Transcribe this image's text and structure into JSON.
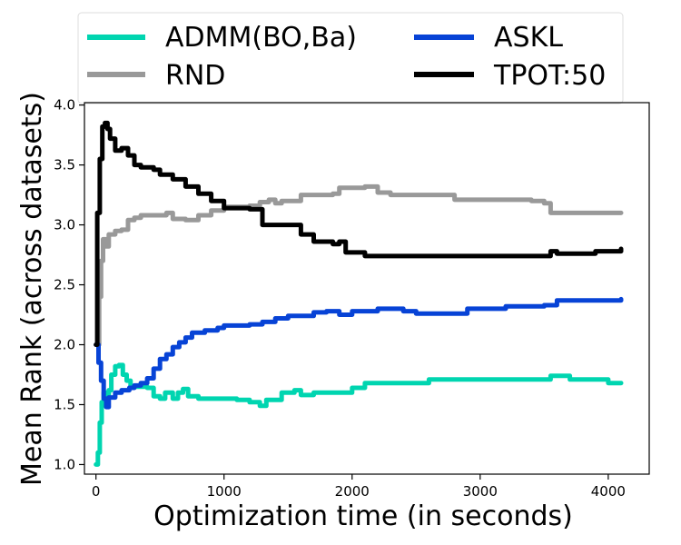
{
  "chart_data": {
    "type": "line",
    "title": "",
    "xlabel": "Optimization time (in seconds)",
    "ylabel": "Mean Rank (across datasets)",
    "xlim": [
      -90,
      4320
    ],
    "ylim": [
      0.92,
      4.02
    ],
    "xticks": [
      0,
      1000,
      2000,
      3000,
      4000
    ],
    "xtick_labels": [
      "0",
      "1000",
      "2000",
      "3000",
      "4000"
    ],
    "yticks": [
      1.0,
      1.5,
      2.0,
      2.5,
      3.0,
      3.5,
      4.0
    ],
    "ytick_labels": [
      "1.0",
      "1.5",
      "2.0",
      "2.5",
      "3.0",
      "3.5",
      "4.0"
    ],
    "grid": false,
    "legend_position": "top",
    "series": [
      {
        "name": "ADMM(BO,Ba)",
        "color": "#00d5b0",
        "points": [
          [
            0,
            1.0
          ],
          [
            15,
            1.1
          ],
          [
            30,
            1.35
          ],
          [
            45,
            1.52
          ],
          [
            60,
            1.6
          ],
          [
            80,
            1.55
          ],
          [
            100,
            1.62
          ],
          [
            120,
            1.75
          ],
          [
            150,
            1.82
          ],
          [
            180,
            1.83
          ],
          [
            210,
            1.75
          ],
          [
            240,
            1.7
          ],
          [
            270,
            1.65
          ],
          [
            400,
            1.64
          ],
          [
            450,
            1.57
          ],
          [
            500,
            1.55
          ],
          [
            540,
            1.6
          ],
          [
            600,
            1.55
          ],
          [
            640,
            1.6
          ],
          [
            680,
            1.63
          ],
          [
            720,
            1.57
          ],
          [
            800,
            1.55
          ],
          [
            1100,
            1.54
          ],
          [
            1200,
            1.52
          ],
          [
            1280,
            1.49
          ],
          [
            1330,
            1.54
          ],
          [
            1400,
            1.54
          ],
          [
            1450,
            1.6
          ],
          [
            1550,
            1.62
          ],
          [
            1600,
            1.58
          ],
          [
            1700,
            1.6
          ],
          [
            1800,
            1.6
          ],
          [
            2000,
            1.64
          ],
          [
            2100,
            1.68
          ],
          [
            2500,
            1.68
          ],
          [
            2600,
            1.71
          ],
          [
            3500,
            1.71
          ],
          [
            3550,
            1.74
          ],
          [
            3650,
            1.74
          ],
          [
            3700,
            1.71
          ],
          [
            3900,
            1.71
          ],
          [
            4000,
            1.68
          ],
          [
            4100,
            1.68
          ]
        ]
      },
      {
        "name": "RND",
        "color": "#999999",
        "points": [
          [
            0,
            2.0
          ],
          [
            25,
            2.4
          ],
          [
            40,
            2.7
          ],
          [
            55,
            2.88
          ],
          [
            75,
            2.82
          ],
          [
            100,
            2.92
          ],
          [
            150,
            2.95
          ],
          [
            200,
            2.96
          ],
          [
            250,
            3.04
          ],
          [
            300,
            3.06
          ],
          [
            350,
            3.08
          ],
          [
            500,
            3.08
          ],
          [
            550,
            3.1
          ],
          [
            600,
            3.05
          ],
          [
            700,
            3.04
          ],
          [
            800,
            3.08
          ],
          [
            900,
            3.12
          ],
          [
            1000,
            3.15
          ],
          [
            1200,
            3.16
          ],
          [
            1280,
            3.19
          ],
          [
            1350,
            3.21
          ],
          [
            1400,
            3.18
          ],
          [
            1450,
            3.2
          ],
          [
            1550,
            3.2
          ],
          [
            1600,
            3.25
          ],
          [
            1850,
            3.26
          ],
          [
            1900,
            3.31
          ],
          [
            2100,
            3.32
          ],
          [
            2200,
            3.27
          ],
          [
            2300,
            3.25
          ],
          [
            2750,
            3.25
          ],
          [
            2800,
            3.21
          ],
          [
            3400,
            3.2
          ],
          [
            3500,
            3.18
          ],
          [
            3550,
            3.1
          ],
          [
            4100,
            3.1
          ]
        ]
      },
      {
        "name": "ASKL",
        "color": "#0743d6",
        "points": [
          [
            0,
            2.0
          ],
          [
            20,
            1.85
          ],
          [
            40,
            1.7
          ],
          [
            60,
            1.55
          ],
          [
            80,
            1.48
          ],
          [
            100,
            1.56
          ],
          [
            150,
            1.6
          ],
          [
            200,
            1.62
          ],
          [
            260,
            1.64
          ],
          [
            300,
            1.66
          ],
          [
            350,
            1.68
          ],
          [
            400,
            1.72
          ],
          [
            450,
            1.8
          ],
          [
            500,
            1.88
          ],
          [
            550,
            1.92
          ],
          [
            600,
            1.98
          ],
          [
            650,
            2.02
          ],
          [
            700,
            2.06
          ],
          [
            750,
            2.1
          ],
          [
            850,
            2.12
          ],
          [
            950,
            2.14
          ],
          [
            1000,
            2.16
          ],
          [
            1100,
            2.16
          ],
          [
            1200,
            2.17
          ],
          [
            1300,
            2.19
          ],
          [
            1400,
            2.22
          ],
          [
            1500,
            2.24
          ],
          [
            1600,
            2.24
          ],
          [
            1700,
            2.27
          ],
          [
            1800,
            2.28
          ],
          [
            1900,
            2.25
          ],
          [
            2000,
            2.28
          ],
          [
            2200,
            2.3
          ],
          [
            2400,
            2.28
          ],
          [
            2500,
            2.26
          ],
          [
            2800,
            2.26
          ],
          [
            2900,
            2.3
          ],
          [
            3200,
            2.32
          ],
          [
            3500,
            2.33
          ],
          [
            3600,
            2.37
          ],
          [
            4100,
            2.38
          ]
        ]
      },
      {
        "name": "TPOT:50",
        "color": "#000000",
        "points": [
          [
            0,
            2.0
          ],
          [
            10,
            3.1
          ],
          [
            30,
            3.55
          ],
          [
            50,
            3.82
          ],
          [
            70,
            3.85
          ],
          [
            90,
            3.8
          ],
          [
            110,
            3.72
          ],
          [
            150,
            3.62
          ],
          [
            200,
            3.64
          ],
          [
            250,
            3.58
          ],
          [
            300,
            3.5
          ],
          [
            350,
            3.48
          ],
          [
            450,
            3.46
          ],
          [
            500,
            3.42
          ],
          [
            600,
            3.38
          ],
          [
            700,
            3.32
          ],
          [
            800,
            3.26
          ],
          [
            900,
            3.2
          ],
          [
            1000,
            3.14
          ],
          [
            1200,
            3.13
          ],
          [
            1300,
            3.0
          ],
          [
            1500,
            3.0
          ],
          [
            1600,
            2.92
          ],
          [
            1700,
            2.86
          ],
          [
            1850,
            2.84
          ],
          [
            1900,
            2.86
          ],
          [
            1950,
            2.77
          ],
          [
            2100,
            2.74
          ],
          [
            3000,
            2.74
          ],
          [
            3500,
            2.74
          ],
          [
            3550,
            2.78
          ],
          [
            3600,
            2.76
          ],
          [
            3900,
            2.78
          ],
          [
            4100,
            2.8
          ]
        ]
      }
    ]
  }
}
